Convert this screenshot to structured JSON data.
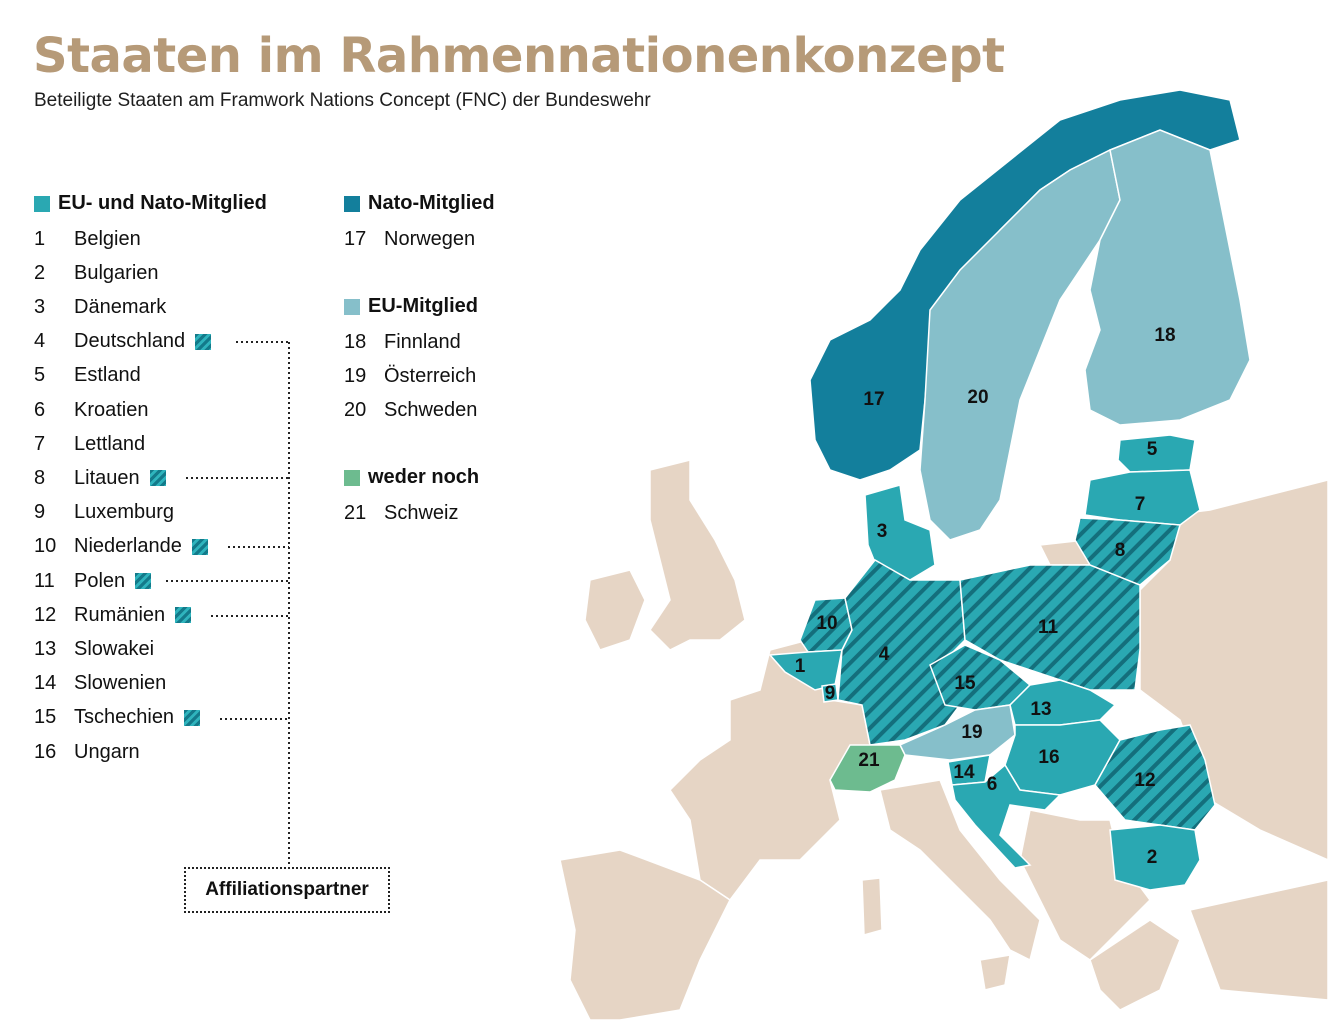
{
  "title": "Staaten im Rahmennationenkonzept",
  "subtitle": "Beteiligte Staaten am Framwork Nations Concept (FNC) der Bundeswehr",
  "colors": {
    "eu_nato": "#2aa8b2",
    "nato": "#137f9c",
    "eu": "#86bfca",
    "neither": "#6dbb8f",
    "other": "#e6d5c5",
    "hatch_dark": "#146f7c",
    "title": "#b69a78"
  },
  "legend": {
    "eu_nato": {
      "heading": "EU- und Nato-Mitglied",
      "items": [
        {
          "num": "1",
          "name": "Belgien",
          "affiliation": false
        },
        {
          "num": "2",
          "name": "Bulgarien",
          "affiliation": false
        },
        {
          "num": "3",
          "name": "Dänemark",
          "affiliation": false
        },
        {
          "num": "4",
          "name": "Deutschland",
          "affiliation": true
        },
        {
          "num": "5",
          "name": "Estland",
          "affiliation": false
        },
        {
          "num": "6",
          "name": "Kroatien",
          "affiliation": false
        },
        {
          "num": "7",
          "name": "Lettland",
          "affiliation": false
        },
        {
          "num": "8",
          "name": "Litauen",
          "affiliation": true
        },
        {
          "num": "9",
          "name": "Luxemburg",
          "affiliation": false
        },
        {
          "num": "10",
          "name": "Niederlande",
          "affiliation": true
        },
        {
          "num": "11",
          "name": "Polen",
          "affiliation": true
        },
        {
          "num": "12",
          "name": "Rumänien",
          "affiliation": true
        },
        {
          "num": "13",
          "name": "Slowakei",
          "affiliation": false
        },
        {
          "num": "14",
          "name": "Slowenien",
          "affiliation": false
        },
        {
          "num": "15",
          "name": "Tschechien",
          "affiliation": true
        },
        {
          "num": "16",
          "name": "Ungarn",
          "affiliation": false
        }
      ]
    },
    "nato": {
      "heading": "Nato-Mitglied",
      "items": [
        {
          "num": "17",
          "name": "Norwegen"
        }
      ]
    },
    "eu": {
      "heading": "EU-Mitglied",
      "items": [
        {
          "num": "18",
          "name": "Finnland"
        },
        {
          "num": "19",
          "name": "Österreich"
        },
        {
          "num": "20",
          "name": "Schweden"
        }
      ]
    },
    "neither": {
      "heading": "weder noch",
      "items": [
        {
          "num": "21",
          "name": "Schweiz"
        }
      ]
    }
  },
  "affiliation_box_label": "Affiliationspartner",
  "map_labels": [
    "1",
    "2",
    "3",
    "4",
    "5",
    "6",
    "7",
    "8",
    "9",
    "10",
    "11",
    "12",
    "13",
    "14",
    "15",
    "16",
    "17",
    "18",
    "19",
    "20",
    "21"
  ]
}
